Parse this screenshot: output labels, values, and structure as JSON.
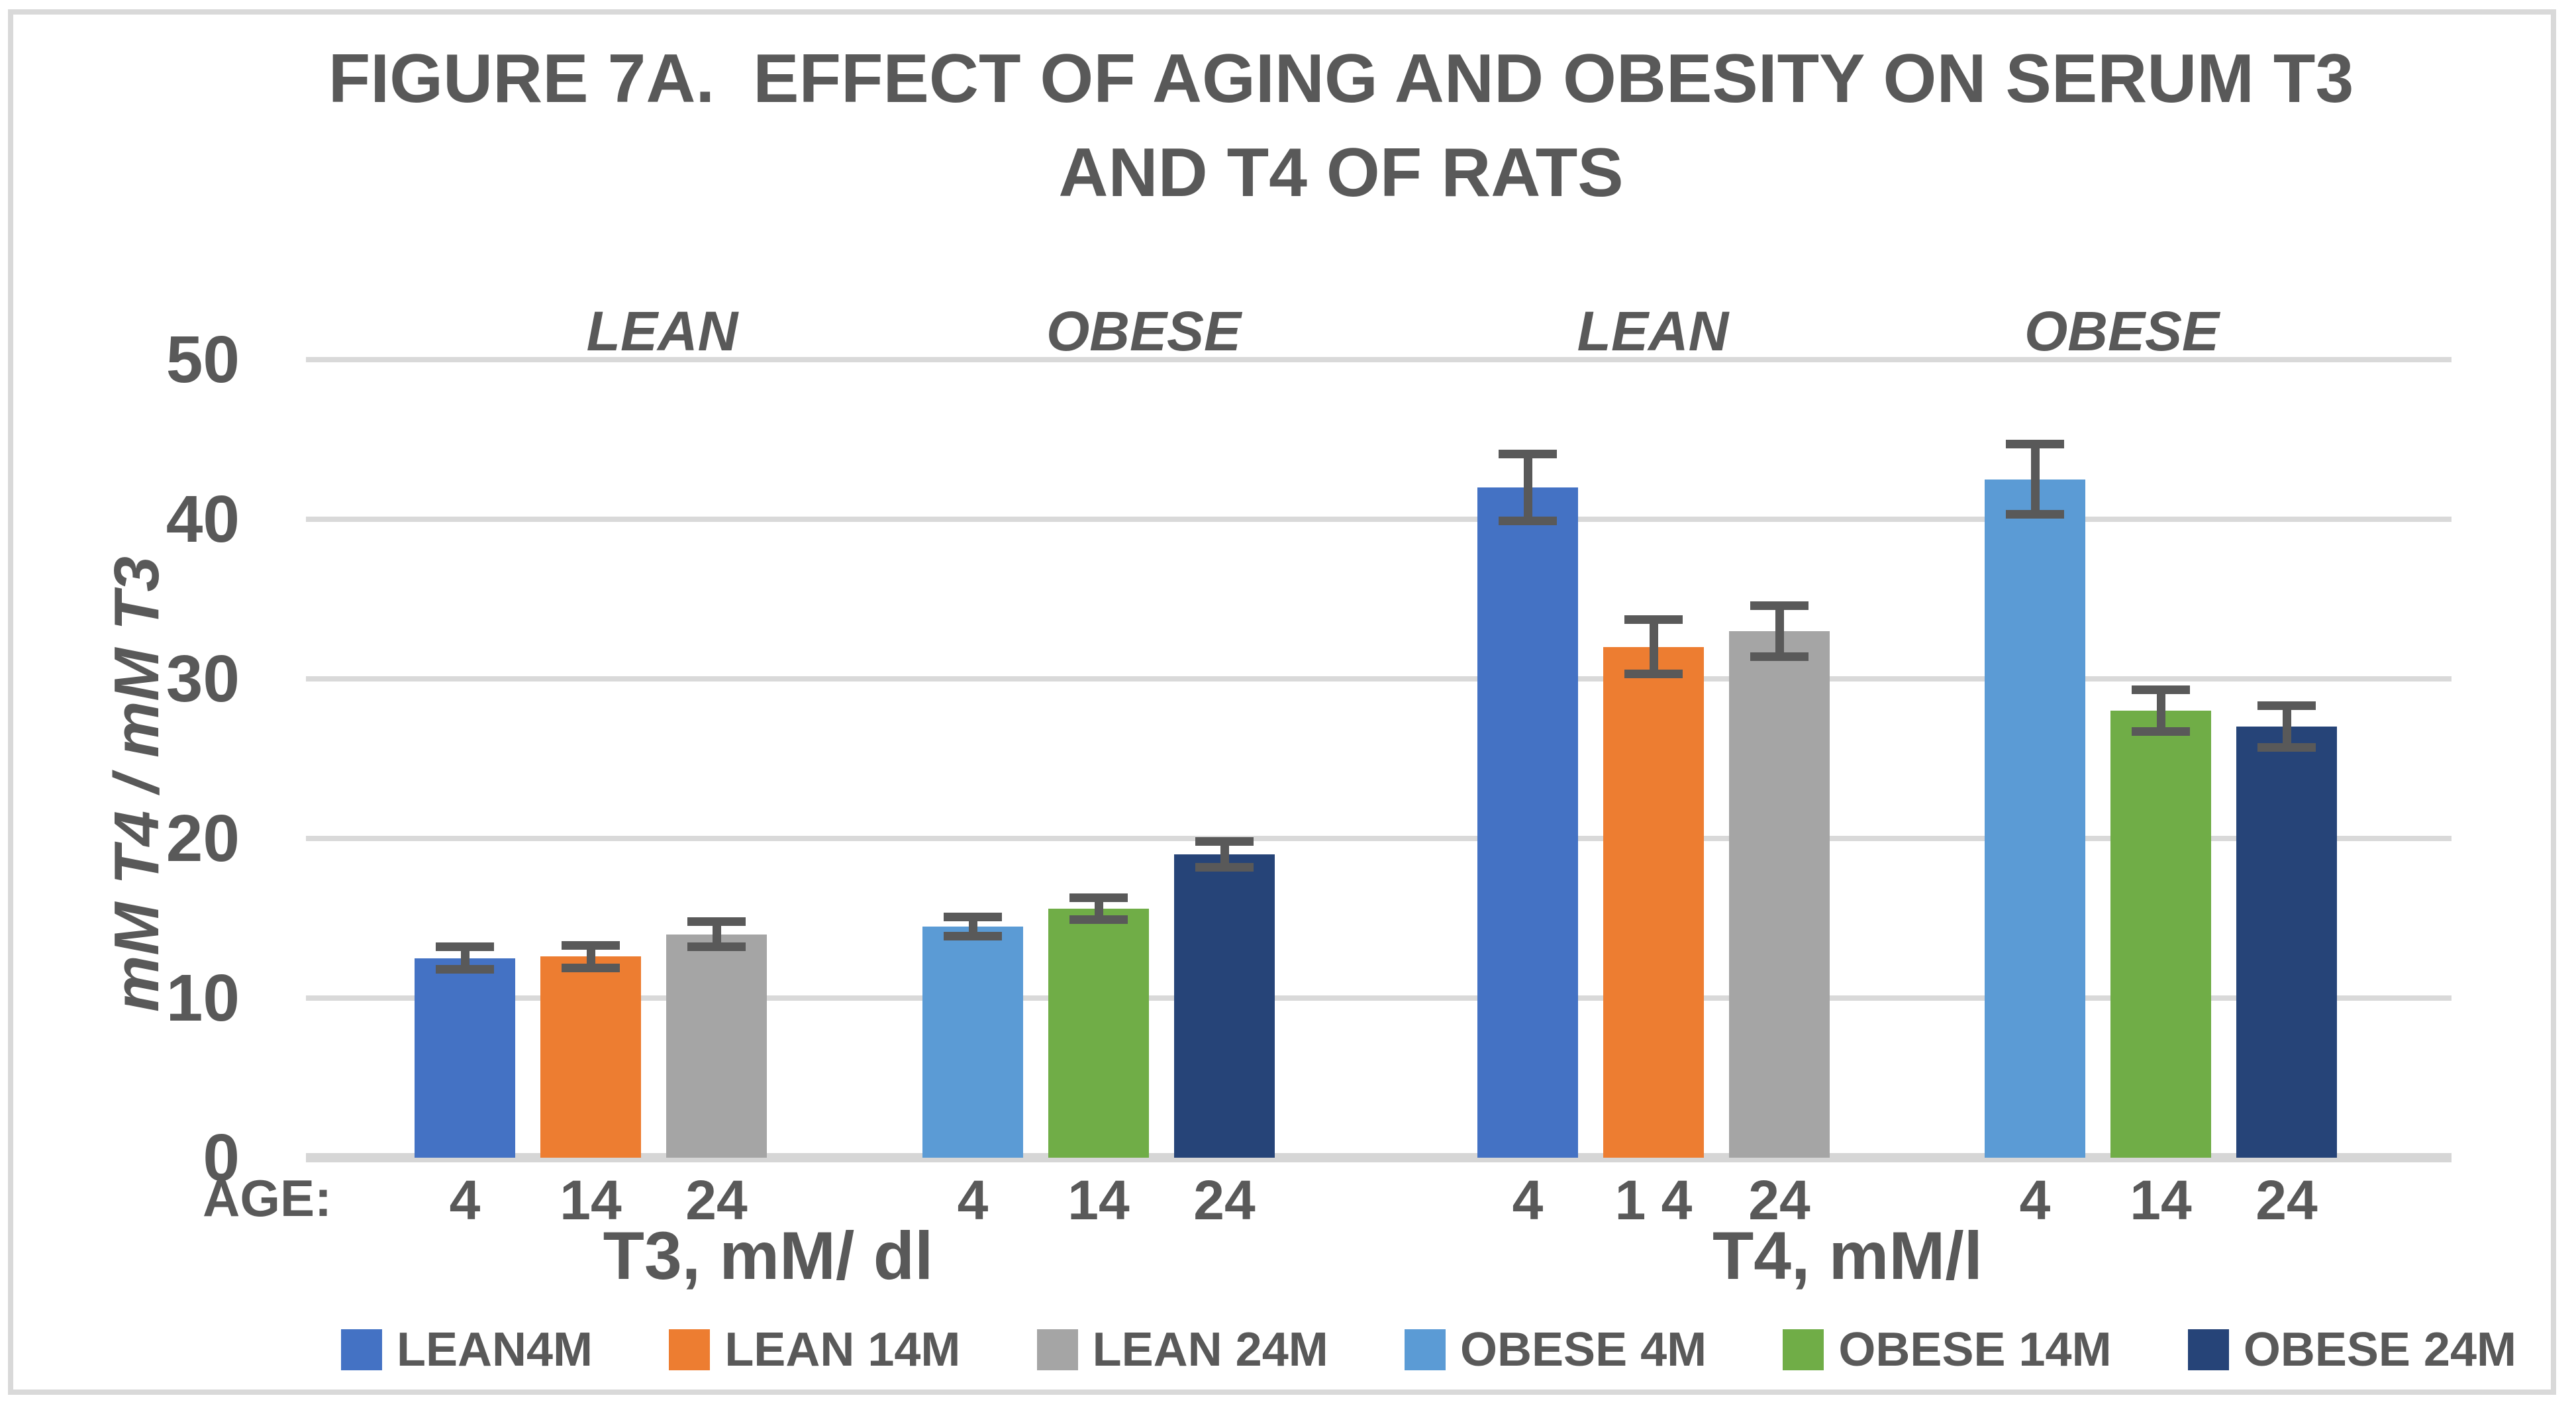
{
  "chart_data": {
    "type": "bar",
    "title_lines": [
      "FIGURE 7A.  EFFECT OF AGING AND OBESITY ON SERUM T3",
      "AND T4 OF RATS"
    ],
    "ylabel": "mM T4 / mM T3",
    "ylim": [
      0,
      50
    ],
    "yticks": [
      0,
      10,
      20,
      30,
      40,
      50
    ],
    "grid": true,
    "age_axis_prefix": "AGE:",
    "legend_position": "bottom",
    "sections": [
      {
        "label": "T3, mM/ dl",
        "groups": [
          {
            "label": "LEAN",
            "ticks": [
              "4",
              "14",
              "24"
            ],
            "values": [
              12.5,
              12.6,
              14.0
            ],
            "errors": [
              0.7,
              0.7,
              0.8
            ]
          },
          {
            "label": "OBESE",
            "ticks": [
              "4",
              "14",
              "24"
            ],
            "values": [
              14.5,
              15.6,
              19.0
            ],
            "errors": [
              0.6,
              0.7,
              0.8
            ]
          }
        ]
      },
      {
        "label": "T4, mM/l",
        "groups": [
          {
            "label": "LEAN",
            "ticks": [
              "4",
              "1 4",
              "24"
            ],
            "values": [
              42.0,
              32.0,
              33.0
            ],
            "errors": [
              2.1,
              1.7,
              1.6
            ]
          },
          {
            "label": "OBESE",
            "ticks": [
              "4",
              "14",
              "24"
            ],
            "values": [
              42.5,
              28.0,
              27.0
            ],
            "errors": [
              2.2,
              1.3,
              1.3
            ]
          }
        ]
      }
    ],
    "legend": [
      {
        "label": "LEAN4M",
        "color": "#4472C4"
      },
      {
        "label": "LEAN 14M",
        "color": "#ED7D31"
      },
      {
        "label": "LEAN 24M",
        "color": "#A5A5A5"
      },
      {
        "label": "OBESE 4M",
        "color": "#5B9BD5"
      },
      {
        "label": "OBESE 14M",
        "color": "#70AD47"
      },
      {
        "label": "OBESE 24M",
        "color": "#264478"
      }
    ],
    "colors": {
      "text": "#595959",
      "gridline": "#D9D9D9",
      "error_bar": "#595959",
      "background": "#FFFFFF",
      "frame_border": "#D9D9D9"
    }
  }
}
